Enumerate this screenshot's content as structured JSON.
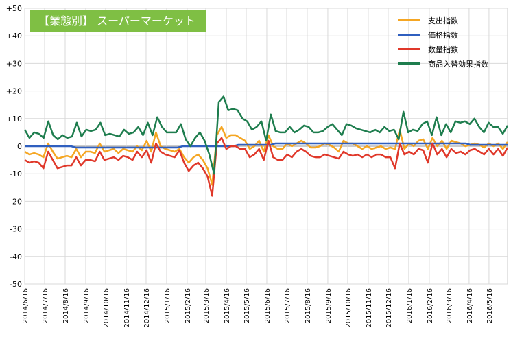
{
  "chart_data": {
    "type": "line",
    "title": "【業態別】 スーパーマーケット",
    "xlabel": "",
    "ylabel": "",
    "ylim": [
      -50,
      50
    ],
    "yticks": [
      "+50",
      "+40",
      "+30",
      "+20",
      "+10",
      "0",
      "-10",
      "-20",
      "-30",
      "-40",
      "-50"
    ],
    "x_tick_labels": [
      "2014/6/16",
      "2014/7/16",
      "2014/8/16",
      "2014/9/16",
      "2014/10/16",
      "2014/11/16",
      "2014/12/16",
      "2015/1/16",
      "2015/2/16",
      "2015/3/16",
      "2015/4/16",
      "2015/5/16",
      "2015/6/16",
      "2015/7/16",
      "2015/8/16",
      "2015/9/16",
      "2015/10/16",
      "2015/11/16",
      "2015/12/16",
      "2016/1/16",
      "2016/2/16",
      "2016/3/16",
      "2016/4/16",
      "2016/5/16"
    ],
    "x_start": "2014/6/16",
    "x_end": "2016/6/13",
    "legend_position": "top-right",
    "grid": true,
    "series": [
      {
        "name": "支出指数",
        "color": "#f5a623",
        "values": [
          -2,
          -3,
          -2.5,
          -3,
          -4,
          1,
          -2,
          -4.5,
          -4,
          -3.5,
          -4,
          -1,
          -4,
          -2,
          -2,
          -2.5,
          1,
          -2,
          -1.5,
          -1,
          -2.5,
          -1,
          -1.5,
          -2,
          0,
          -1.5,
          2,
          -2,
          5,
          0,
          -1,
          -1.5,
          -2,
          -1,
          -4,
          -6,
          -4,
          -3,
          -5,
          -8,
          -14,
          4,
          7,
          3,
          4,
          4,
          3,
          2,
          -1,
          0,
          2,
          -2,
          4,
          0,
          -1,
          -1,
          1,
          0,
          1,
          2,
          1,
          -0.5,
          -0.5,
          0,
          1,
          0.5,
          -0.5,
          -2,
          2,
          1,
          1,
          0,
          -1,
          0,
          -1,
          -0.5,
          0,
          -1,
          -0.5,
          -1,
          6,
          -1,
          1,
          0,
          2,
          2.5,
          -1,
          3,
          0,
          2,
          -1,
          2,
          1.5,
          1,
          0,
          0.5,
          1,
          0.5,
          -0.5,
          1,
          0,
          1,
          -1,
          1.5
        ]
      },
      {
        "name": "価格指数",
        "color": "#2f5fbf",
        "values": [
          0,
          0,
          0,
          0,
          0,
          0,
          0,
          0,
          0,
          0,
          0,
          -0.5,
          -0.5,
          -0.5,
          -0.5,
          -0.5,
          -0.5,
          -0.5,
          -0.5,
          -0.5,
          -0.5,
          -0.5,
          -0.5,
          -0.5,
          -0.5,
          -0.5,
          -0.5,
          -0.5,
          -0.5,
          -0.5,
          -0.5,
          -0.5,
          -0.5,
          -0.5,
          0,
          0,
          0,
          0,
          0,
          0,
          0,
          0,
          0,
          0,
          0,
          0,
          0.5,
          0.5,
          0.5,
          0.5,
          0.5,
          0.5,
          0.5,
          0.5,
          1,
          1,
          1,
          1,
          1,
          1,
          1,
          1,
          1,
          1,
          1,
          1,
          1,
          1,
          1,
          1,
          1,
          1,
          1,
          1,
          1,
          1,
          1,
          1,
          1,
          1,
          1,
          1,
          1,
          1,
          1,
          1,
          1,
          1,
          1,
          1,
          1,
          1,
          1,
          1,
          1,
          1,
          0.5,
          0.5,
          0.5,
          0.5,
          0.5,
          0.5,
          0.5,
          0.5,
          0.5
        ]
      },
      {
        "name": "数量指数",
        "color": "#e0382a",
        "values": [
          -5,
          -6,
          -5.5,
          -6,
          -8,
          -2,
          -5,
          -8,
          -7.5,
          -7,
          -7,
          -4,
          -7,
          -5,
          -5,
          -5.5,
          -2,
          -5,
          -4.5,
          -4,
          -5,
          -3.5,
          -4,
          -5,
          -2,
          -4,
          -1.5,
          -6,
          1,
          -2,
          -3,
          -3.5,
          -4,
          -1.5,
          -6,
          -9,
          -7,
          -6,
          -8,
          -11,
          -18,
          1,
          3,
          -1,
          0,
          0,
          -1,
          -1,
          -4,
          -3,
          -1,
          -5,
          2,
          -4,
          -5,
          -5,
          -3,
          -4,
          -2,
          -1,
          -2,
          -3.5,
          -4,
          -4,
          -3,
          -3.5,
          -4,
          -4.5,
          -2,
          -3,
          -3.5,
          -3,
          -4,
          -3,
          -4,
          -3,
          -3,
          -4,
          -4,
          -8,
          1,
          -3,
          -2,
          -3,
          -1,
          -1.5,
          -6,
          1,
          -3,
          -1,
          -4,
          -1,
          -2.5,
          -2,
          -3,
          -1.5,
          -1,
          -2,
          -3,
          -1,
          -3,
          -1,
          -3.5,
          -0.5
        ]
      },
      {
        "name": "商品入替効果指数",
        "color": "#1e7d4e",
        "values": [
          6,
          3,
          5,
          4.5,
          3,
          9,
          4,
          2.5,
          4,
          3,
          3.5,
          8.5,
          3.5,
          6,
          5.5,
          6,
          8.5,
          4,
          4.5,
          4,
          3.5,
          6,
          4.5,
          5,
          7,
          4,
          8.5,
          4,
          10.5,
          7,
          5,
          5,
          5,
          8,
          2.5,
          0,
          3,
          5,
          2,
          -3,
          -10,
          16,
          18,
          13,
          13.5,
          13,
          10,
          9,
          6,
          7,
          9,
          2,
          11.5,
          5.5,
          5,
          5,
          7,
          5,
          6,
          7.5,
          7,
          5,
          5,
          5.5,
          7,
          8,
          6,
          4,
          8,
          7.5,
          6.5,
          6,
          5.5,
          5,
          6,
          5,
          7,
          5.5,
          6,
          2.5,
          12.5,
          5,
          6,
          5.5,
          8,
          9,
          4,
          10.5,
          4,
          8,
          5,
          9,
          8.5,
          9,
          8,
          10,
          7,
          5,
          8.5,
          7,
          7,
          4.5,
          7.5
        ]
      }
    ]
  }
}
